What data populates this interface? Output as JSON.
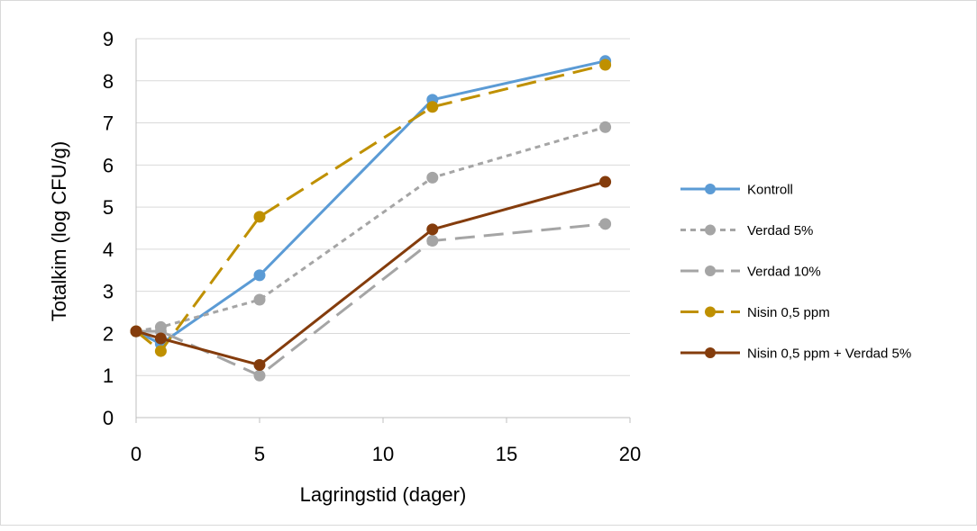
{
  "chart_data": {
    "type": "line",
    "title": "",
    "xlabel": "Lagringstid (dager)",
    "ylabel": "Totalkim (log CFU/g)",
    "xlim": [
      0,
      20
    ],
    "ylim": [
      0,
      9
    ],
    "xticks": [
      "0",
      "5",
      "10",
      "15",
      "20"
    ],
    "yticks": [
      "0",
      "1",
      "2",
      "3",
      "4",
      "5",
      "6",
      "7",
      "8",
      "9"
    ],
    "grid": "horizontal",
    "legend_position": "right",
    "x": [
      0,
      1,
      5,
      12,
      19
    ],
    "series": [
      {
        "name": "Kontroll",
        "color": "#5b9bd5",
        "dash": "solid",
        "values": [
          2.05,
          1.75,
          3.38,
          7.55,
          8.47
        ]
      },
      {
        "name": "Verdad 5%",
        "color": "#a5a5a5",
        "dash": "short-dash",
        "values": [
          2.05,
          2.15,
          2.8,
          5.7,
          6.9
        ]
      },
      {
        "name": "Verdad 10%",
        "color": "#a5a5a5",
        "dash": "long-dash",
        "values": [
          2.05,
          2.05,
          1.0,
          4.2,
          4.6
        ]
      },
      {
        "name": "Nisin 0,5 ppm",
        "color": "#bf9000",
        "dash": "long-dash",
        "values": [
          2.05,
          1.58,
          4.77,
          7.38,
          8.38
        ]
      },
      {
        "name": "Nisin 0,5 ppm + Verdad 5%",
        "color": "#843c0c",
        "dash": "solid",
        "values": [
          2.05,
          1.88,
          1.25,
          4.47,
          5.6
        ]
      }
    ]
  }
}
